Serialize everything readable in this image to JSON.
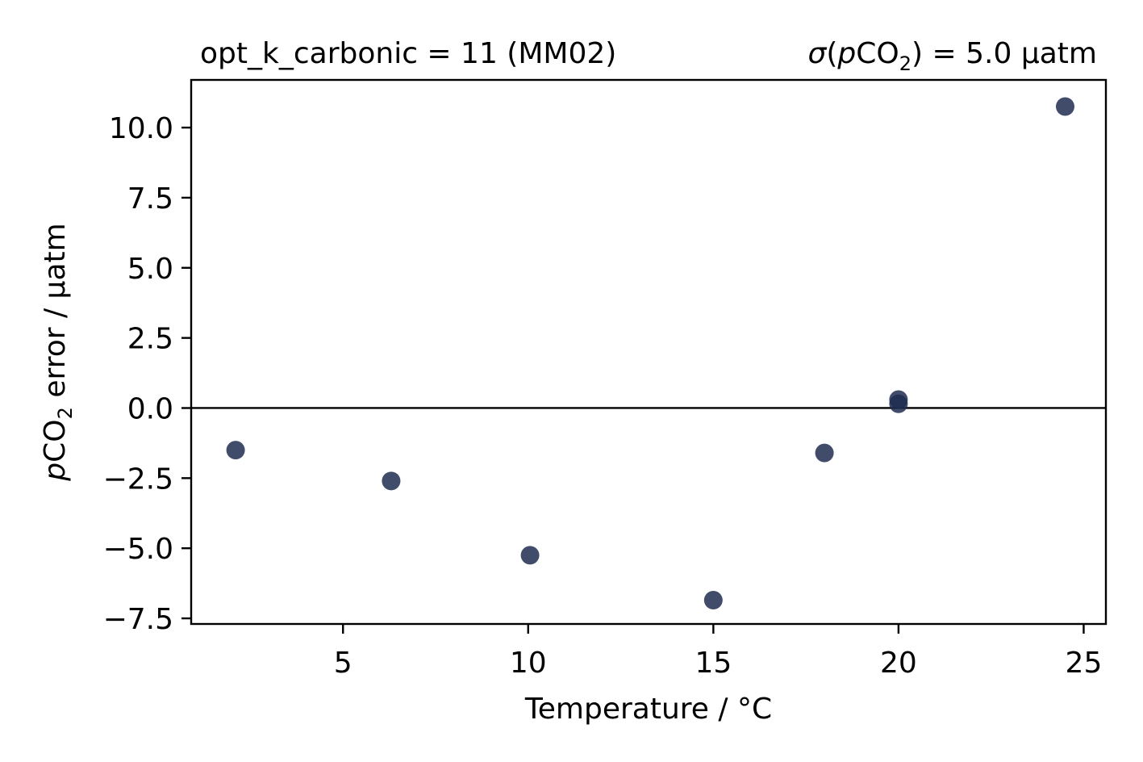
{
  "chart_data": {
    "type": "scatter",
    "title_left": "opt_k_carbonic = 11 (MM02)",
    "title_right": {
      "sigma": "σ",
      "open": "(",
      "p": "p",
      "co": "CO",
      "sub": "2",
      "rest": ") = 5.0 µatm"
    },
    "xlabel": "Temperature / °C",
    "ylabel": {
      "p": "p",
      "co": "CO",
      "sub": "2",
      "rest": " error / µatm"
    },
    "xlim": [
      0.9,
      25.6
    ],
    "ylim": [
      -7.7,
      11.7
    ],
    "x_ticks": [
      5,
      10,
      15,
      20,
      25
    ],
    "x_tick_labels": [
      "5",
      "10",
      "15",
      "20",
      "25"
    ],
    "y_ticks": [
      10.0,
      7.5,
      5.0,
      2.5,
      0.0,
      -2.5,
      -5.0,
      -7.5
    ],
    "y_tick_labels": [
      "10.0",
      "7.5",
      "5.0",
      "2.5",
      "0.0",
      "−2.5",
      "−5.0",
      "−7.5"
    ],
    "reference_line_y": 0.0,
    "grid": false,
    "marker_color": "#1f2d50",
    "series": [
      {
        "points": [
          {
            "x": 2.1,
            "y": -1.5
          },
          {
            "x": 6.3,
            "y": -2.6
          },
          {
            "x": 10.05,
            "y": -5.25
          },
          {
            "x": 15.0,
            "y": -6.85
          },
          {
            "x": 18.0,
            "y": -1.6
          },
          {
            "x": 20.0,
            "y": 0.3
          },
          {
            "x": 20.0,
            "y": 0.15
          },
          {
            "x": 24.5,
            "y": 10.75
          }
        ]
      }
    ]
  }
}
